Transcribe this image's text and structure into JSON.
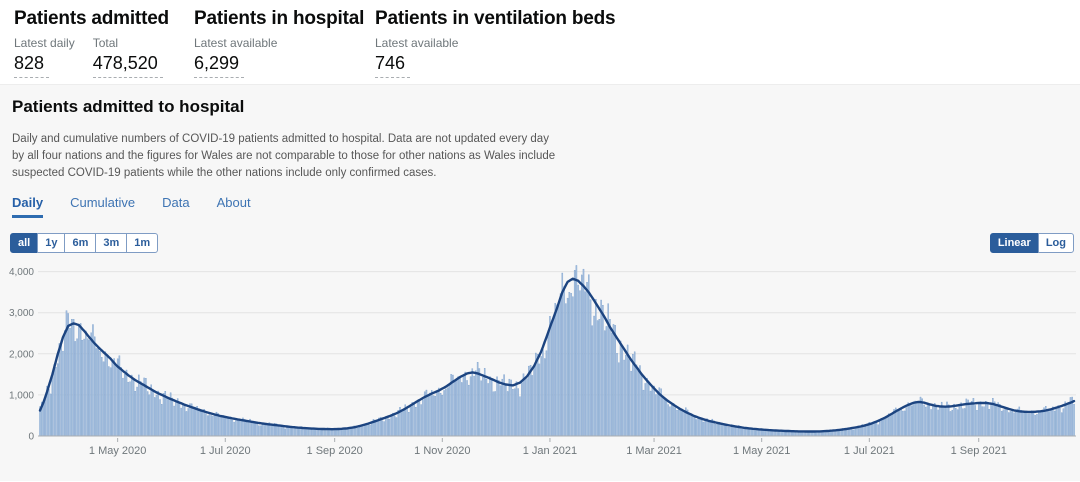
{
  "summary": [
    {
      "title": "Patients admitted",
      "metrics": [
        {
          "label": "Latest daily",
          "value": "828"
        },
        {
          "label": "Total",
          "value": "478,520"
        }
      ]
    },
    {
      "title": "Patients in hospital",
      "metrics": [
        {
          "label": "Latest available",
          "value": "6,299"
        }
      ]
    },
    {
      "title": "Patients in ventilation beds",
      "metrics": [
        {
          "label": "Latest available",
          "value": "746"
        }
      ]
    }
  ],
  "section": {
    "heading": "Patients admitted to hospital",
    "description": "Daily and cumulative numbers of COVID-19 patients admitted to hospital. Data are not updated every day by all four nations and the figures for Wales are not comparable to those for other nations as Wales include suspected COVID-19 patients while the other nations include only confirmed cases."
  },
  "tabs": [
    {
      "label": "Daily",
      "active": true
    },
    {
      "label": "Cumulative",
      "active": false
    },
    {
      "label": "Data",
      "active": false
    },
    {
      "label": "About",
      "active": false
    }
  ],
  "controls": {
    "ranges": [
      {
        "label": "all",
        "active": true
      },
      {
        "label": "1y",
        "active": false
      },
      {
        "label": "6m",
        "active": false
      },
      {
        "label": "3m",
        "active": false
      },
      {
        "label": "1m",
        "active": false
      }
    ],
    "scale": [
      {
        "label": "Linear",
        "active": true
      },
      {
        "label": "Log",
        "active": false
      }
    ]
  },
  "colors": {
    "bar_fill": "#a6c0df",
    "bar_stroke": "#6d95c6",
    "line": "#1c4480",
    "grid": "#e4e4e4",
    "axis": "#a9adb1",
    "tick_text": "#6f777b",
    "control_blue": "#2b5d9b",
    "tab_blue": "#2e6cb0"
  },
  "chart_data": {
    "type": "bar+line",
    "description": "Daily COVID-19 hospital admissions (bars) with 7-day average (line)",
    "ylim": [
      0,
      4000
    ],
    "y_ticks": [
      0,
      1000,
      2000,
      3000,
      4000
    ],
    "grid": true,
    "legend": "none",
    "x_range": {
      "start": "2020-03-18",
      "end": "2021-10-25"
    },
    "x_ticks": [
      {
        "label": "1 May 2020",
        "date": "2020-05-01"
      },
      {
        "label": "1 Jul 2020",
        "date": "2020-07-01"
      },
      {
        "label": "1 Sep 2020",
        "date": "2020-09-01"
      },
      {
        "label": "1 Nov 2020",
        "date": "2020-11-01"
      },
      {
        "label": "1 Jan 2021",
        "date": "2021-01-01"
      },
      {
        "label": "1 Mar 2021",
        "date": "2021-03-01"
      },
      {
        "label": "1 May 2021",
        "date": "2021-05-01"
      },
      {
        "label": "1 Jul 2021",
        "date": "2021-07-01"
      },
      {
        "label": "1 Sep 2021",
        "date": "2021-09-01"
      }
    ],
    "series": {
      "line": {
        "name": "rolling-average",
        "points": [
          [
            "2020-03-18",
            620
          ],
          [
            "2020-03-20",
            820
          ],
          [
            "2020-03-22",
            1080
          ],
          [
            "2020-03-25",
            1500
          ],
          [
            "2020-03-28",
            1980
          ],
          [
            "2020-03-31",
            2400
          ],
          [
            "2020-04-03",
            2680
          ],
          [
            "2020-04-06",
            2740
          ],
          [
            "2020-04-09",
            2700
          ],
          [
            "2020-04-12",
            2560
          ],
          [
            "2020-04-15",
            2400
          ],
          [
            "2020-04-18",
            2250
          ],
          [
            "2020-04-21",
            2120
          ],
          [
            "2020-04-24",
            2000
          ],
          [
            "2020-04-27",
            1880
          ],
          [
            "2020-04-30",
            1730
          ],
          [
            "2020-05-03",
            1620
          ],
          [
            "2020-05-07",
            1480
          ],
          [
            "2020-05-11",
            1360
          ],
          [
            "2020-05-15",
            1260
          ],
          [
            "2020-05-19",
            1160
          ],
          [
            "2020-05-23",
            1060
          ],
          [
            "2020-05-27",
            980
          ],
          [
            "2020-05-31",
            900
          ],
          [
            "2020-06-04",
            830
          ],
          [
            "2020-06-08",
            760
          ],
          [
            "2020-06-12",
            700
          ],
          [
            "2020-06-16",
            640
          ],
          [
            "2020-06-20",
            585
          ],
          [
            "2020-06-24",
            535
          ],
          [
            "2020-06-28",
            490
          ],
          [
            "2020-07-02",
            455
          ],
          [
            "2020-07-06",
            420
          ],
          [
            "2020-07-10",
            390
          ],
          [
            "2020-07-14",
            360
          ],
          [
            "2020-07-18",
            330
          ],
          [
            "2020-07-22",
            305
          ],
          [
            "2020-07-26",
            282
          ],
          [
            "2020-07-30",
            262
          ],
          [
            "2020-08-03",
            242
          ],
          [
            "2020-08-07",
            222
          ],
          [
            "2020-08-11",
            205
          ],
          [
            "2020-08-15",
            192
          ],
          [
            "2020-08-19",
            181
          ],
          [
            "2020-08-23",
            173
          ],
          [
            "2020-08-27",
            168
          ],
          [
            "2020-08-31",
            166
          ],
          [
            "2020-09-04",
            172
          ],
          [
            "2020-09-08",
            186
          ],
          [
            "2020-09-12",
            212
          ],
          [
            "2020-09-16",
            252
          ],
          [
            "2020-09-20",
            302
          ],
          [
            "2020-09-24",
            360
          ],
          [
            "2020-09-28",
            420
          ],
          [
            "2020-10-02",
            482
          ],
          [
            "2020-10-06",
            552
          ],
          [
            "2020-10-10",
            640
          ],
          [
            "2020-10-14",
            742
          ],
          [
            "2020-10-18",
            850
          ],
          [
            "2020-10-22",
            948
          ],
          [
            "2020-10-26",
            1032
          ],
          [
            "2020-10-30",
            1105
          ],
          [
            "2020-11-03",
            1200
          ],
          [
            "2020-11-07",
            1318
          ],
          [
            "2020-11-11",
            1432
          ],
          [
            "2020-11-15",
            1520
          ],
          [
            "2020-11-18",
            1548
          ],
          [
            "2020-11-21",
            1522
          ],
          [
            "2020-11-25",
            1455
          ],
          [
            "2020-11-29",
            1385
          ],
          [
            "2020-12-03",
            1305
          ],
          [
            "2020-12-07",
            1252
          ],
          [
            "2020-12-11",
            1232
          ],
          [
            "2020-12-15",
            1298
          ],
          [
            "2020-12-19",
            1450
          ],
          [
            "2020-12-23",
            1700
          ],
          [
            "2020-12-27",
            2050
          ],
          [
            "2020-12-30",
            2400
          ],
          [
            "2021-01-02",
            2760
          ],
          [
            "2021-01-05",
            3110
          ],
          [
            "2021-01-08",
            3500
          ],
          [
            "2021-01-11",
            3750
          ],
          [
            "2021-01-14",
            3828
          ],
          [
            "2021-01-17",
            3775
          ],
          [
            "2021-01-20",
            3650
          ],
          [
            "2021-01-23",
            3495
          ],
          [
            "2021-01-26",
            3300
          ],
          [
            "2021-01-29",
            3095
          ],
          [
            "2021-02-01",
            2890
          ],
          [
            "2021-02-04",
            2650
          ],
          [
            "2021-02-07",
            2450
          ],
          [
            "2021-02-10",
            2248
          ],
          [
            "2021-02-13",
            2050
          ],
          [
            "2021-02-16",
            1852
          ],
          [
            "2021-02-19",
            1678
          ],
          [
            "2021-02-22",
            1502
          ],
          [
            "2021-02-25",
            1348
          ],
          [
            "2021-02-28",
            1205
          ],
          [
            "2021-03-04",
            1025
          ],
          [
            "2021-03-08",
            880
          ],
          [
            "2021-03-12",
            760
          ],
          [
            "2021-03-16",
            652
          ],
          [
            "2021-03-20",
            562
          ],
          [
            "2021-03-24",
            482
          ],
          [
            "2021-03-28",
            420
          ],
          [
            "2021-04-01",
            368
          ],
          [
            "2021-04-05",
            328
          ],
          [
            "2021-04-09",
            290
          ],
          [
            "2021-04-13",
            255
          ],
          [
            "2021-04-17",
            226
          ],
          [
            "2021-04-21",
            200
          ],
          [
            "2021-04-25",
            180
          ],
          [
            "2021-04-29",
            164
          ],
          [
            "2021-05-03",
            150
          ],
          [
            "2021-05-07",
            139
          ],
          [
            "2021-05-11",
            130
          ],
          [
            "2021-05-15",
            122
          ],
          [
            "2021-05-19",
            116
          ],
          [
            "2021-05-23",
            112
          ],
          [
            "2021-05-27",
            110
          ],
          [
            "2021-05-31",
            110
          ],
          [
            "2021-06-04",
            114
          ],
          [
            "2021-06-08",
            124
          ],
          [
            "2021-06-12",
            139
          ],
          [
            "2021-06-16",
            158
          ],
          [
            "2021-06-20",
            184
          ],
          [
            "2021-06-24",
            214
          ],
          [
            "2021-06-28",
            250
          ],
          [
            "2021-07-02",
            300
          ],
          [
            "2021-07-06",
            368
          ],
          [
            "2021-07-10",
            448
          ],
          [
            "2021-07-14",
            548
          ],
          [
            "2021-07-18",
            648
          ],
          [
            "2021-07-22",
            738
          ],
          [
            "2021-07-26",
            808
          ],
          [
            "2021-07-29",
            830
          ],
          [
            "2021-08-01",
            812
          ],
          [
            "2021-08-04",
            772
          ],
          [
            "2021-08-07",
            740
          ],
          [
            "2021-08-10",
            720
          ],
          [
            "2021-08-13",
            712
          ],
          [
            "2021-08-16",
            720
          ],
          [
            "2021-08-19",
            738
          ],
          [
            "2021-08-22",
            758
          ],
          [
            "2021-08-25",
            778
          ],
          [
            "2021-08-28",
            790
          ],
          [
            "2021-08-31",
            800
          ],
          [
            "2021-09-03",
            806
          ],
          [
            "2021-09-06",
            800
          ],
          [
            "2021-09-09",
            780
          ],
          [
            "2021-09-12",
            742
          ],
          [
            "2021-09-15",
            700
          ],
          [
            "2021-09-18",
            660
          ],
          [
            "2021-09-21",
            622
          ],
          [
            "2021-09-24",
            600
          ],
          [
            "2021-09-27",
            590
          ],
          [
            "2021-09-30",
            586
          ],
          [
            "2021-10-03",
            590
          ],
          [
            "2021-10-06",
            602
          ],
          [
            "2021-10-09",
            620
          ],
          [
            "2021-10-12",
            650
          ],
          [
            "2021-10-15",
            690
          ],
          [
            "2021-10-18",
            730
          ],
          [
            "2021-10-21",
            778
          ],
          [
            "2021-10-24",
            828
          ],
          [
            "2021-10-25",
            848
          ]
        ]
      },
      "bars": {
        "name": "daily-admissions",
        "derived_from": "rolling-average with daily reporting variation"
      }
    }
  }
}
